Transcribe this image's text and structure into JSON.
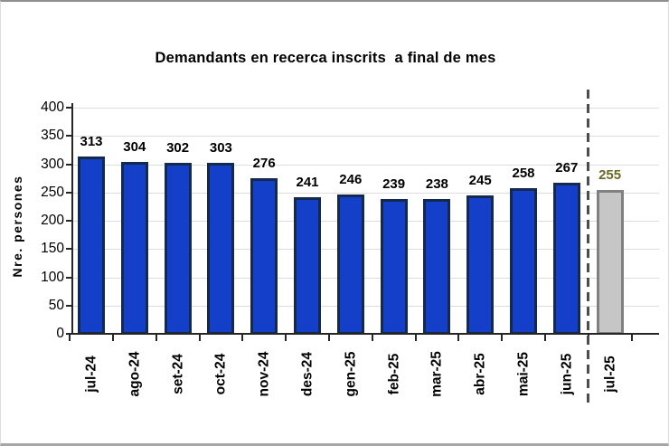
{
  "chart_data": {
    "type": "bar",
    "title": "Demandants en recerca inscrits  a final de mes",
    "ylabel": "Nre. persones",
    "xlabel": "",
    "ylim": [
      0,
      400
    ],
    "yticks": [
      0,
      50,
      100,
      150,
      200,
      250,
      300,
      350,
      400
    ],
    "grid": "horizontal light lines every 50, no vertical grid",
    "legend_position": "none",
    "categories": [
      "jul-24",
      "ago-24",
      "set-24",
      "oct-24",
      "nov-24",
      "des-24",
      "gen-25",
      "feb-25",
      "mar-25",
      "abr-25",
      "mai-25",
      "jun-25",
      "jul-25"
    ],
    "values": [
      313,
      304,
      302,
      303,
      276,
      241,
      246,
      239,
      238,
      245,
      258,
      267,
      255
    ],
    "series": [
      {
        "name": "Demandants en recerca inscrits",
        "values": [
          313,
          304,
          302,
          303,
          276,
          241,
          246,
          239,
          238,
          245,
          258,
          267,
          255
        ]
      }
    ],
    "highlight": {
      "index": 12,
      "category": "jul-25",
      "value": 255,
      "note": "last month shown in gray, separated by vertical dashed line"
    },
    "annotations": {
      "divider_between": [
        "jun-25",
        "jul-25"
      ],
      "divider_style": "vertical dashed gray line"
    }
  },
  "styles": {
    "bar_fill": "#1440c9",
    "bar_border": "#13294e",
    "highlight_fill": "#c6c6c6",
    "highlight_border": "#808080",
    "highlight_label_color": "#6b6b26",
    "value_label_color": "#000000",
    "grid_color": "#dcdcdc",
    "axis_color": "#262626",
    "divider_color": "#4d4d4d",
    "background": "#ffffff"
  }
}
